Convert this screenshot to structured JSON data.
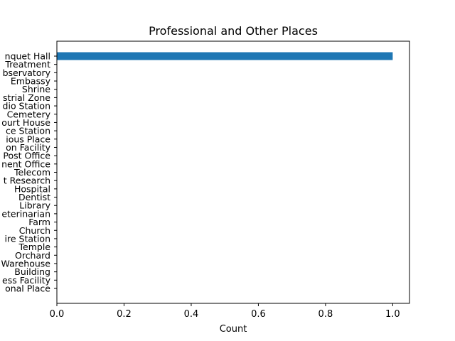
{
  "chart_data": {
    "type": "bar",
    "orientation": "horizontal",
    "title": "Professional and Other Places",
    "xlabel": "Count",
    "ylabel": "",
    "xlim": [
      0,
      1.05
    ],
    "xticks": [
      0.0,
      0.2,
      0.4,
      0.6,
      0.8,
      1.0
    ],
    "xtick_labels": [
      "0.0",
      "0.2",
      "0.4",
      "0.6",
      "0.8",
      "1.0"
    ],
    "categories": [
      "nquet Hall",
      "Treatment",
      "bservatory",
      "Embassy",
      "Shrine",
      "strial Zone",
      "dio Station",
      "Cemetery",
      "ourt House",
      "ce Station",
      "ious Place",
      "on Facility",
      "Post Office",
      "nent Office",
      "Telecom",
      "t Research",
      "Hospital",
      "Dentist",
      "Library",
      "eterinarian",
      "Farm",
      "Church",
      "ire Station",
      "Temple",
      "Orchard",
      "Warehouse",
      "Building",
      "ess Facility",
      "onal Place"
    ],
    "values": [
      1,
      0,
      0,
      0,
      0,
      0,
      0,
      0,
      0,
      0,
      0,
      0,
      0,
      0,
      0,
      0,
      0,
      0,
      0,
      0,
      0,
      0,
      0,
      0,
      0,
      0,
      0,
      0,
      0
    ],
    "bar_color": "#1f77b4",
    "grid": false,
    "legend": "none"
  }
}
